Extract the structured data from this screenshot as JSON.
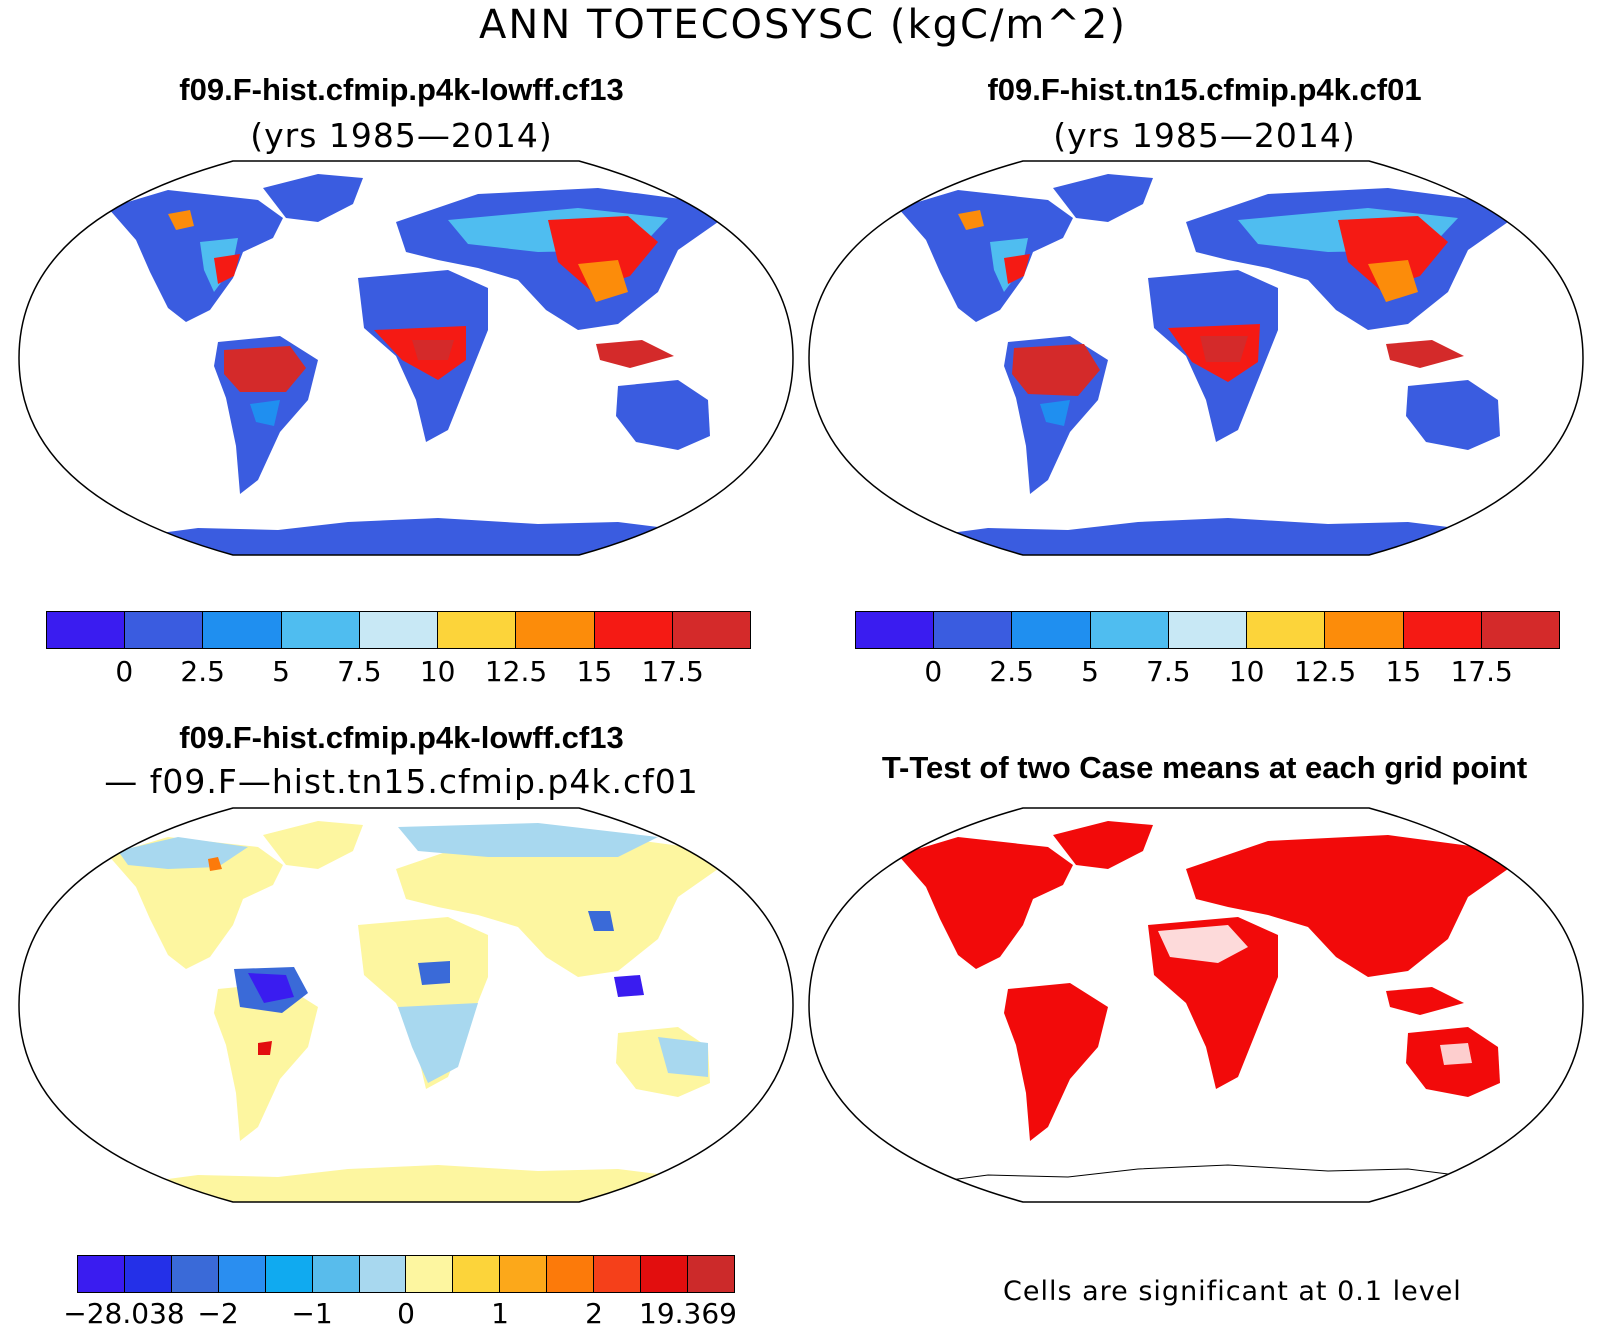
{
  "figure": {
    "title": "ANN TOTECOSYSC (kgC/m^2)"
  },
  "panels": {
    "top_left": {
      "title": "f09.F-hist.cfmip.p4k-lowff.cf13",
      "subtitle": "(yrs 1985—2014)"
    },
    "top_right": {
      "title": "f09.F-hist.tn15.cfmip.p4k.cf01",
      "subtitle": "(yrs 1985—2014)"
    },
    "bottom_left": {
      "title": "f09.F-hist.cfmip.p4k-lowff.cf13",
      "subtitle": "— f09.F—hist.tn15.cfmip.p4k.cf01"
    },
    "bottom_right": {
      "title": "T-Test of two Case means at each grid point",
      "note": "Cells are significant at 0.1 level"
    }
  },
  "colorbars": {
    "absolute": {
      "colors": [
        "#3a1cf0",
        "#3a5ce0",
        "#1f8ff0",
        "#4fbdf0",
        "#c8e8f5",
        "#fcd43a",
        "#fc8c0a",
        "#f51a14",
        "#d42a2a"
      ],
      "labels": [
        "0",
        "2.5",
        "5",
        "7.5",
        "10",
        "12.5",
        "15",
        "17.5"
      ]
    },
    "difference": {
      "colors": [
        "#3a1cf0",
        "#2430e8",
        "#3a6ad8",
        "#2a8ef0",
        "#10aaf0",
        "#58bcec",
        "#a8d8ef",
        "#fdf6a0",
        "#fcd43a",
        "#fca81a",
        "#fc7a0a",
        "#f5401a",
        "#e20e0e",
        "#cc2a2a"
      ],
      "labels": [
        "−28.038",
        "−2",
        "−1",
        "0",
        "1",
        "2",
        "19.369"
      ]
    }
  },
  "map_colors": {
    "ocean": "#ffffff",
    "coast": "#000000",
    "significance": "#f20a0a"
  }
}
